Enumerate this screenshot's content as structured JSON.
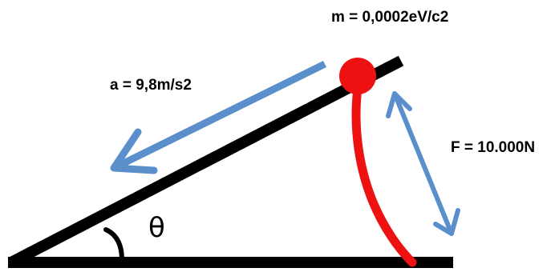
{
  "labels": {
    "mass": "m = 0,0002eV/c2",
    "acceleration": "a = 9,8m/s2",
    "force": "F = 10.000N",
    "angle": "θ"
  },
  "colors": {
    "ramp": "#000000",
    "ball": "#ee1111",
    "string": "#ee1111",
    "arrows": "#5b8fcb",
    "text": "#000000"
  }
}
